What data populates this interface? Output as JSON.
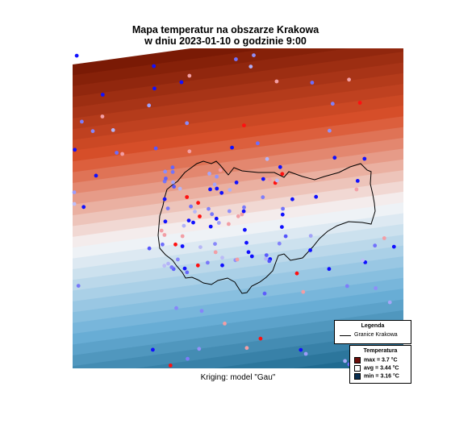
{
  "title": {
    "line1": "Mapa temperatur na obszarze Krakowa",
    "line2": "w dniu 2023-01-10 o godzinie 9:00"
  },
  "caption": "Kriging: model \"Gau\"",
  "legend": {
    "title": "Legenda",
    "boundary_label": "Granice Krakowa"
  },
  "temp_legend": {
    "title": "Temperatura",
    "rows": [
      {
        "label": "max =",
        "value": "3.7 °C",
        "color": "#6b0e0a"
      },
      {
        "label": "avg =",
        "value": "3.44 °C",
        "color": "#ffffff"
      },
      {
        "label": "min =",
        "value": "3.16 °C",
        "color": "#0a2f52"
      }
    ]
  },
  "colors": {
    "hot": "#7a1a05",
    "neutral": "#f6f6f8",
    "cold": "#08557a",
    "point_hot": "#ff1010",
    "point_cold": "#1010ff"
  }
}
